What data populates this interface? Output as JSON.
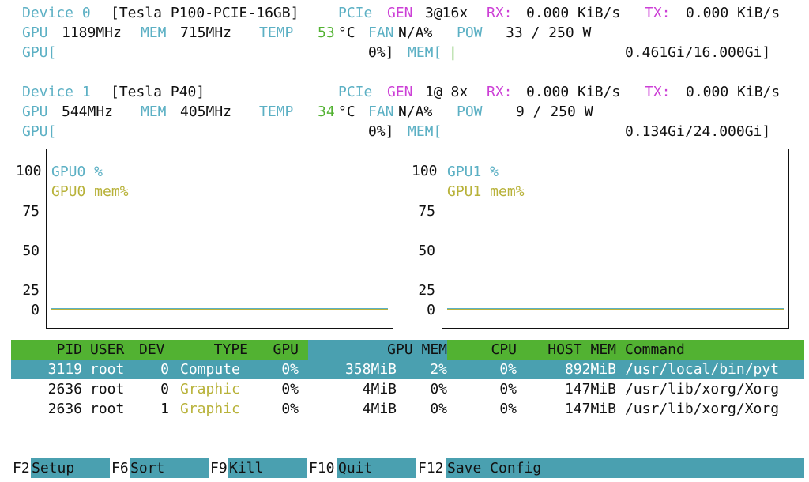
{
  "devices": [
    {
      "label": "Device 0",
      "name": "[Tesla P100-PCIE-16GB]",
      "pcie_label": "PCIe",
      "gen_label": "GEN",
      "gen_value": "3@16x",
      "rx_label": "RX:",
      "rx_value": "0.000 KiB/s",
      "tx_label": "TX:",
      "tx_value": "0.000 KiB/s",
      "gpu_label": "GPU",
      "gpu_clock": "1189MHz",
      "mem_label": "MEM",
      "mem_clock": "715MHz",
      "temp_label": "TEMP",
      "temp_value": "53",
      "temp_unit": "°C",
      "fan_label": "FAN",
      "fan_value": "N/A%",
      "pow_label": "POW",
      "pow_value": "33 / 250 W",
      "util_label": "GPU[",
      "util_value": "0%]",
      "mem_bar_label": "MEM[",
      "mem_bar_fill": "|",
      "mem_usage": "0.461Gi/16.000Gi]"
    },
    {
      "label": "Device 1",
      "name": "[Tesla P40]",
      "pcie_label": "PCIe",
      "gen_label": "GEN",
      "gen_value": "1@ 8x",
      "rx_label": "RX:",
      "rx_value": "0.000 KiB/s",
      "tx_label": "TX:",
      "tx_value": "0.000 KiB/s",
      "gpu_label": "GPU",
      "gpu_clock": "544MHz",
      "mem_label": "MEM",
      "mem_clock": "405MHz",
      "temp_label": "TEMP",
      "temp_value": "34",
      "temp_unit": "°C",
      "fan_label": "FAN",
      "fan_value": "N/A%",
      "pow_label": "POW",
      "pow_value": "9 / 250 W",
      "util_label": "GPU[",
      "util_value": "0%]",
      "mem_bar_label": "MEM[",
      "mem_bar_fill": "",
      "mem_usage": "0.134Gi/24.000Gi]"
    }
  ],
  "charts": [
    {
      "series_gpu": "GPU0 %",
      "series_mem": "GPU0 mem%",
      "ticks": [
        "100",
        "75",
        "50",
        "25",
        "0"
      ]
    },
    {
      "series_gpu": "GPU1 %",
      "series_mem": "GPU1 mem%",
      "ticks": [
        "100",
        "75",
        "50",
        "25",
        "0"
      ]
    }
  ],
  "chart_data": [
    {
      "type": "line",
      "ylim": [
        0,
        100
      ],
      "yticks": [
        0,
        25,
        50,
        75,
        100
      ],
      "series": [
        {
          "name": "GPU0 %",
          "values": [
            0
          ]
        },
        {
          "name": "GPU0 mem%",
          "values": [
            0
          ]
        }
      ]
    },
    {
      "type": "line",
      "ylim": [
        0,
        100
      ],
      "yticks": [
        0,
        25,
        50,
        75,
        100
      ],
      "series": [
        {
          "name": "GPU1 %",
          "values": [
            0
          ]
        },
        {
          "name": "GPU1 mem%",
          "values": [
            0
          ]
        }
      ]
    }
  ],
  "process_table": {
    "headers": [
      "PID",
      "USER",
      "DEV",
      "TYPE",
      "GPU",
      "GPU MEM",
      "CPU",
      "HOST MEM",
      "Command"
    ],
    "rows": [
      {
        "pid": "3119",
        "user": "root",
        "dev": "0",
        "type": "Compute",
        "gpu": "0%",
        "gpu_mem": "358MiB",
        "gpu_mem_pct": "2%",
        "cpu": "0%",
        "host_mem": "892MiB",
        "command": "/usr/local/bin/pyt"
      },
      {
        "pid": "2636",
        "user": "root",
        "dev": "0",
        "type": "Graphic",
        "gpu": "0%",
        "gpu_mem": "4MiB",
        "gpu_mem_pct": "0%",
        "cpu": "0%",
        "host_mem": "147MiB",
        "command": "/usr/lib/xorg/Xorg"
      },
      {
        "pid": "2636",
        "user": "root",
        "dev": "1",
        "type": "Graphic",
        "gpu": "0%",
        "gpu_mem": "4MiB",
        "gpu_mem_pct": "0%",
        "cpu": "0%",
        "host_mem": "147MiB",
        "command": "/usr/lib/xorg/Xorg"
      }
    ]
  },
  "footer": [
    {
      "key": "F2",
      "label": "Setup"
    },
    {
      "key": "F6",
      "label": "Sort"
    },
    {
      "key": "F9",
      "label": "Kill"
    },
    {
      "key": "F10",
      "label": "Quit"
    },
    {
      "key": "F12",
      "label": "Save Config"
    }
  ],
  "colors": {
    "label_cyan": "#5cb0c4",
    "label_magenta": "#cc3fd6",
    "temp_green": "#52b232",
    "graphic_olive": "#b8b23a",
    "header_green": "#52b232",
    "selection_teal": "#4aa0b0"
  }
}
